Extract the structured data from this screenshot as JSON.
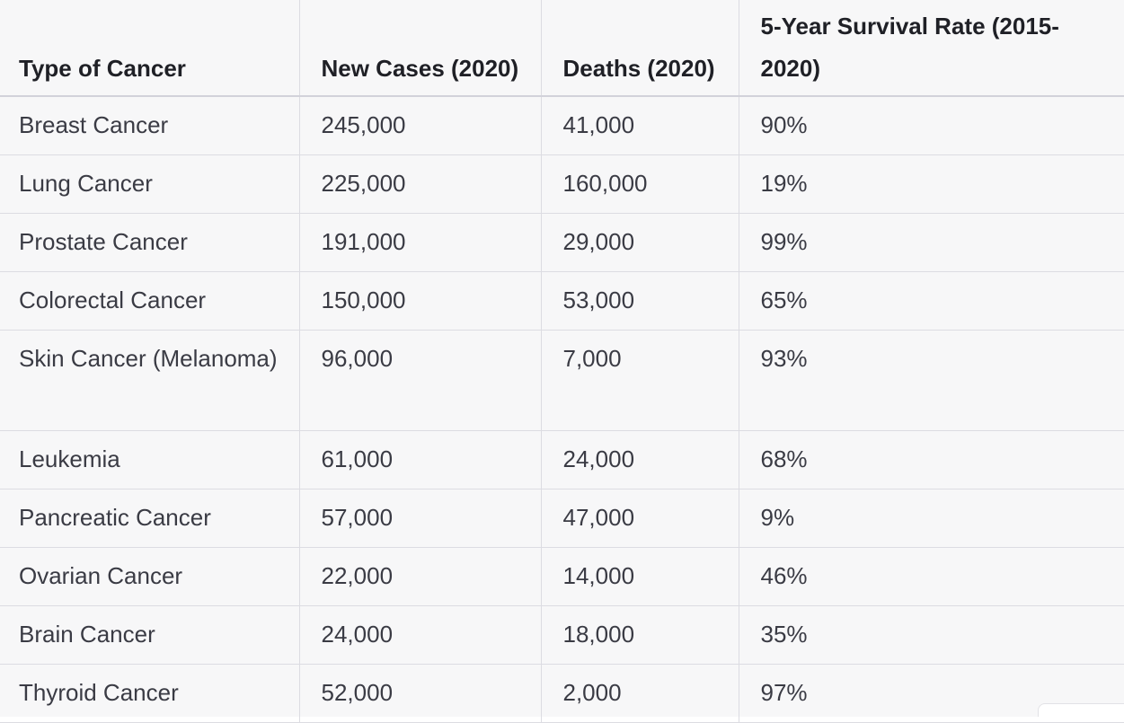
{
  "table": {
    "headers": [
      "Type of Cancer",
      "New Cases (2020)",
      "Deaths (2020)",
      "5-Year Survival Rate (2015-2020)"
    ],
    "rows": [
      [
        "Breast Cancer",
        "245,000",
        "41,000",
        "90%"
      ],
      [
        "Lung Cancer",
        "225,000",
        "160,000",
        "19%"
      ],
      [
        "Prostate Cancer",
        "191,000",
        "29,000",
        "99%"
      ],
      [
        "Colorectal Cancer",
        "150,000",
        "53,000",
        "65%"
      ],
      [
        "Skin Cancer (Melanoma)",
        "96,000",
        "7,000",
        "93%"
      ],
      [
        "Leukemia",
        "61,000",
        "24,000",
        "68%"
      ],
      [
        "Pancreatic Cancer",
        "57,000",
        "47,000",
        "9%"
      ],
      [
        "Ovarian Cancer",
        "22,000",
        "14,000",
        "46%"
      ],
      [
        "Brain Cancer",
        "24,000",
        "18,000",
        "35%"
      ],
      [
        "Thyroid Cancer",
        "52,000",
        "2,000",
        "97%"
      ]
    ]
  }
}
